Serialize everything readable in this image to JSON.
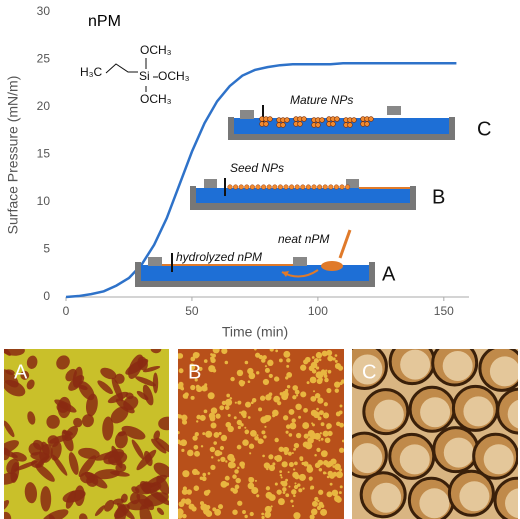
{
  "chart_data": {
    "type": "line",
    "title": "nPM",
    "x_label": "Time (min)",
    "y_label": "Surface Pressure (mN/m)",
    "x": [
      0,
      5,
      10,
      15,
      20,
      25,
      30,
      35,
      40,
      45,
      50,
      55,
      60,
      65,
      70,
      75,
      80,
      85,
      90,
      95,
      100,
      105,
      110,
      115,
      120,
      125,
      130,
      135,
      140,
      145,
      150,
      155
    ],
    "series": [
      {
        "name": "nPM",
        "color": "#2e72c9",
        "values": [
          0,
          0.1,
          0.3,
          0.6,
          1.2,
          2.0,
          3.4,
          5.5,
          8.3,
          11.8,
          15.3,
          18.3,
          20.6,
          22.2,
          23.3,
          23.9,
          24.2,
          24.4,
          24.5,
          24.5,
          24.5,
          24.5,
          24.6,
          24.6,
          24.6,
          24.6,
          24.6,
          24.6,
          24.6,
          24.6,
          24.6,
          24.6
        ]
      }
    ],
    "xlim": [
      0,
      160
    ],
    "xticks": [
      0,
      50,
      100,
      150
    ],
    "ylim": [
      0,
      30
    ],
    "yticks": [
      0,
      5,
      10,
      15,
      20,
      25,
      30
    ],
    "grid": false,
    "annotations": {
      "molecule": {
        "left": "H₃C",
        "si": "Si",
        "o1": "OCH₃",
        "o2": "OCH₃",
        "o3": "OCH₃"
      },
      "mature": "Mature NPs",
      "seed": "Seed NPs",
      "neat": "neat nPM",
      "hydrolyzed": "hydrolyzed nPM",
      "stage_c": "C",
      "stage_b": "B",
      "stage_a": "A"
    },
    "panels": [
      "A",
      "B",
      "C"
    ]
  }
}
